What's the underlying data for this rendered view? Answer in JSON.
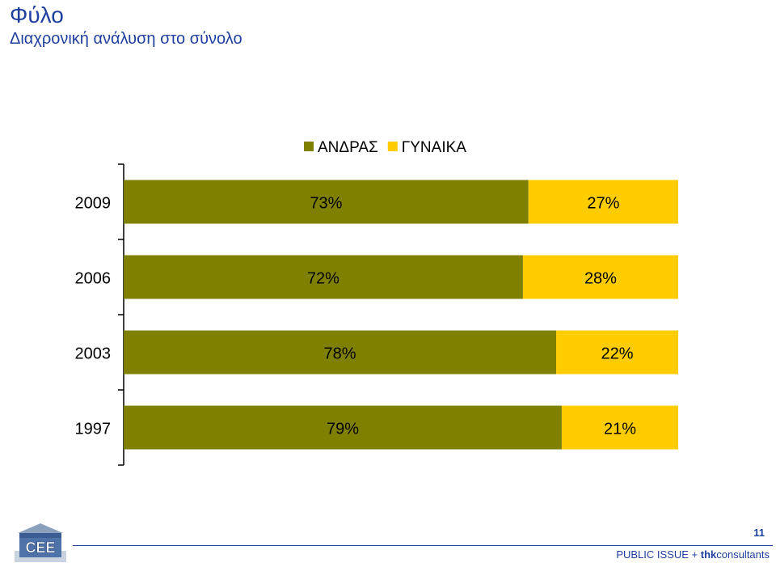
{
  "header": {
    "title": "Φύλο",
    "subtitle": "Διαχρονική ανάλυση στο σύνολο"
  },
  "footer": {
    "page_number": "11",
    "brand_prefix": "PUBLIC ISSUE + ",
    "brand_bold": "thk",
    "brand_suffix": "consultants",
    "logo_text": "CEE"
  },
  "colors": {
    "men": "#808000",
    "women": "#ffcc00",
    "text": "#000000",
    "accent": "#1f3f9f"
  },
  "chart_data": {
    "type": "bar",
    "orientation": "horizontal",
    "stacked": true,
    "categories": [
      "2009",
      "2006",
      "2003",
      "1997"
    ],
    "series": [
      {
        "name": "ΑΝΔΡΑΣ",
        "values": [
          73,
          72,
          78,
          79
        ],
        "labels": [
          "73%",
          "72%",
          "78%",
          "79%"
        ],
        "color": "#808000"
      },
      {
        "name": "ΓΥΝΑΙΚΑ",
        "values": [
          27,
          28,
          22,
          21
        ],
        "labels": [
          "27%",
          "28%",
          "22%",
          "21%"
        ],
        "color": "#ffcc00"
      }
    ],
    "xlim": [
      0,
      100
    ],
    "grid": false,
    "legend": "top"
  }
}
